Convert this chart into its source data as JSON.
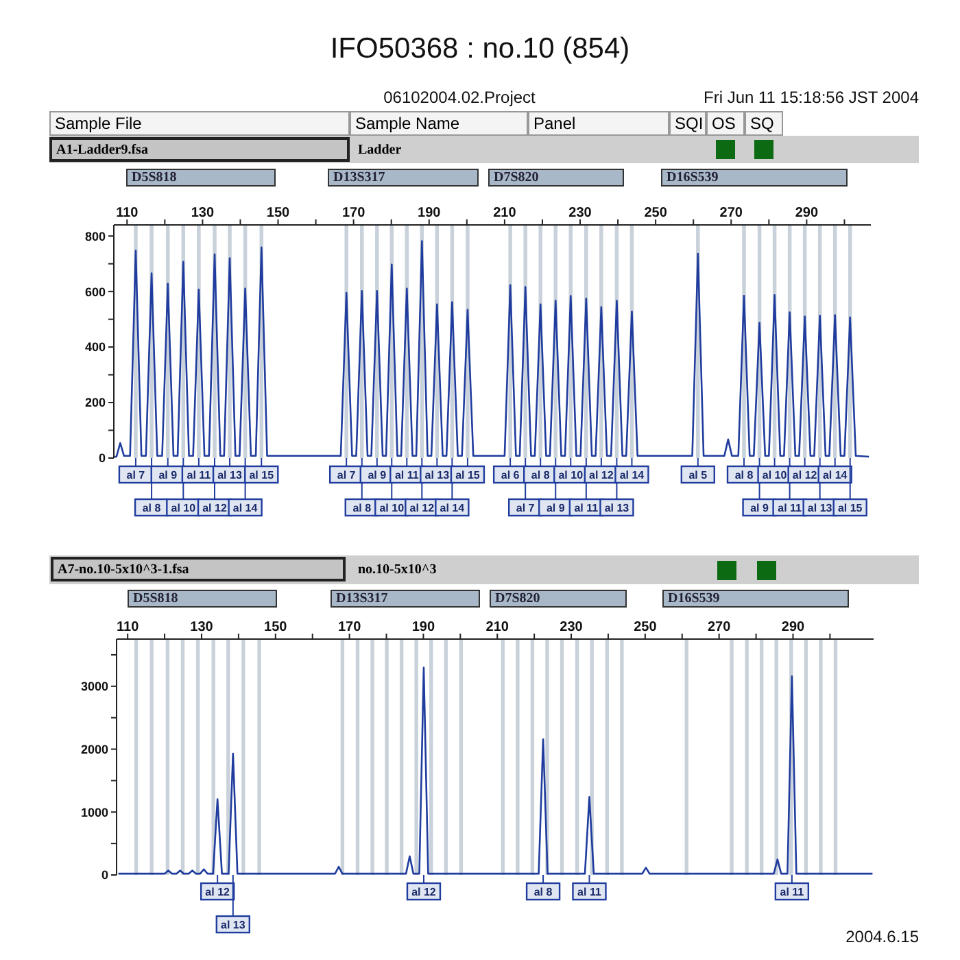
{
  "chart_data": [
    {
      "type": "line",
      "title": "IFO50368 : no.10 (854)",
      "x": [
        106.6,
        107.2,
        108.2,
        109.2,
        110.8,
        112.3,
        113.8,
        115.0,
        116.5,
        118.0,
        119.3,
        120.8,
        122.3,
        123.4,
        124.9,
        126.4,
        127.5,
        129.0,
        130.5,
        131.7,
        133.2,
        134.7,
        135.7,
        137.2,
        138.7,
        139.8,
        141.3,
        142.8,
        144.1,
        145.6,
        147.1,
        166.6,
        168.1,
        169.6,
        170.7,
        172.2,
        173.7,
        174.7,
        176.2,
        177.7,
        178.6,
        180.1,
        181.6,
        182.6,
        184.1,
        185.6,
        186.6,
        188.1,
        189.6,
        190.6,
        192.1,
        193.6,
        194.6,
        196.1,
        197.6,
        198.7,
        200.2,
        201.7,
        210.0,
        211.5,
        213.0,
        214.0,
        215.5,
        217.0,
        218.0,
        219.5,
        221.0,
        222.0,
        223.5,
        225.0,
        226.0,
        227.5,
        229.0,
        230.1,
        231.6,
        233.1,
        234.1,
        235.6,
        237.1,
        238.2,
        239.7,
        241.2,
        242.2,
        243.7,
        245.2,
        259.7,
        261.2,
        262.7,
        268.2,
        269.2,
        270.2,
        271.9,
        273.4,
        274.9,
        276.0,
        277.5,
        279.0,
        280.0,
        281.5,
        283.0,
        284.0,
        285.5,
        287.0,
        288.0,
        289.5,
        291.0,
        292.0,
        293.5,
        295.0,
        296.0,
        297.5,
        299.0,
        300.0,
        301.5,
        303.0,
        306.5
      ],
      "series": [
        {
          "color": "#1f3c9e",
          "values": [
            5,
            5,
            54,
            8,
            8,
            747,
            8,
            8,
            666,
            8,
            8,
            628,
            8,
            8,
            707,
            8,
            8,
            607,
            8,
            8,
            734,
            8,
            8,
            720,
            8,
            8,
            611,
            8,
            8,
            759,
            8,
            8,
            595,
            8,
            8,
            602,
            8,
            8,
            602,
            8,
            8,
            697,
            8,
            8,
            611,
            8,
            8,
            782,
            8,
            8,
            554,
            8,
            8,
            562,
            8,
            8,
            534,
            8,
            8,
            623,
            8,
            8,
            616,
            8,
            8,
            554,
            8,
            8,
            567,
            8,
            8,
            584,
            8,
            8,
            574,
            8,
            8,
            544,
            8,
            8,
            567,
            8,
            8,
            528,
            8,
            8,
            736,
            8,
            8,
            67,
            8,
            8,
            585,
            8,
            8,
            487,
            8,
            8,
            587,
            8,
            8,
            525,
            8,
            8,
            510,
            8,
            8,
            513,
            8,
            8,
            515,
            8,
            8,
            507,
            8,
            5
          ]
        }
      ],
      "xlim": [
        106.5,
        307
      ],
      "xticks": [
        110,
        {
          "value": 120,
          "label": null
        },
        130,
        {
          "value": 140,
          "label": null
        },
        150,
        {
          "value": 160,
          "label": null
        },
        170,
        {
          "value": 180,
          "label": null
        },
        190,
        {
          "value": 200,
          "label": null
        },
        210,
        {
          "value": 220,
          "label": null
        },
        230,
        {
          "value": 240,
          "label": null
        },
        250,
        {
          "value": 260,
          "label": null
        },
        270,
        {
          "value": 280,
          "label": null
        },
        290,
        {
          "value": 300,
          "label": null
        }
      ],
      "ylim": [
        0,
        840
      ],
      "yticks": [
        0,
        {
          "value": 100,
          "label": null
        },
        200,
        {
          "value": 300,
          "label": null
        },
        400,
        {
          "value": 500,
          "label": null
        },
        600,
        {
          "value": 700,
          "label": null
        },
        800
      ],
      "bands": [
        {
          "axis": "x",
          "from": 111.8,
          "to": 112.8,
          "color": "#c9d1da"
        },
        {
          "axis": "x",
          "from": 116.0,
          "to": 117.0,
          "color": "#c9d1da"
        },
        {
          "axis": "x",
          "from": 120.3,
          "to": 121.3,
          "color": "#c9d1da"
        },
        {
          "axis": "x",
          "from": 124.4,
          "to": 125.4,
          "color": "#c9d1da"
        },
        {
          "axis": "x",
          "from": 128.5,
          "to": 129.5,
          "color": "#c9d1da"
        },
        {
          "axis": "x",
          "from": 132.7,
          "to": 133.7,
          "color": "#c9d1da"
        },
        {
          "axis": "x",
          "from": 136.7,
          "to": 137.7,
          "color": "#c9d1da"
        },
        {
          "axis": "x",
          "from": 140.8,
          "to": 141.8,
          "color": "#c9d1da"
        },
        {
          "axis": "x",
          "from": 145.1,
          "to": 146.1,
          "color": "#c9d1da"
        },
        {
          "axis": "x",
          "from": 167.6,
          "to": 168.6,
          "color": "#c9d1da"
        },
        {
          "axis": "x",
          "from": 171.7,
          "to": 172.7,
          "color": "#c9d1da"
        },
        {
          "axis": "x",
          "from": 175.7,
          "to": 176.7,
          "color": "#c9d1da"
        },
        {
          "axis": "x",
          "from": 179.6,
          "to": 180.6,
          "color": "#c9d1da"
        },
        {
          "axis": "x",
          "from": 183.6,
          "to": 184.6,
          "color": "#c9d1da"
        },
        {
          "axis": "x",
          "from": 187.6,
          "to": 188.6,
          "color": "#c9d1da"
        },
        {
          "axis": "x",
          "from": 191.6,
          "to": 192.6,
          "color": "#c9d1da"
        },
        {
          "axis": "x",
          "from": 195.6,
          "to": 196.6,
          "color": "#c9d1da"
        },
        {
          "axis": "x",
          "from": 199.7,
          "to": 200.7,
          "color": "#c9d1da"
        },
        {
          "axis": "x",
          "from": 211.0,
          "to": 212.0,
          "color": "#c9d1da"
        },
        {
          "axis": "x",
          "from": 215.0,
          "to": 216.0,
          "color": "#c9d1da"
        },
        {
          "axis": "x",
          "from": 219.0,
          "to": 220.0,
          "color": "#c9d1da"
        },
        {
          "axis": "x",
          "from": 223.0,
          "to": 224.0,
          "color": "#c9d1da"
        },
        {
          "axis": "x",
          "from": 227.0,
          "to": 228.0,
          "color": "#c9d1da"
        },
        {
          "axis": "x",
          "from": 231.1,
          "to": 232.1,
          "color": "#c9d1da"
        },
        {
          "axis": "x",
          "from": 235.1,
          "to": 236.1,
          "color": "#c9d1da"
        },
        {
          "axis": "x",
          "from": 239.2,
          "to": 240.2,
          "color": "#c9d1da"
        },
        {
          "axis": "x",
          "from": 243.2,
          "to": 244.2,
          "color": "#c9d1da"
        },
        {
          "axis": "x",
          "from": 260.7,
          "to": 261.7,
          "color": "#c9d1da"
        },
        {
          "axis": "x",
          "from": 272.9,
          "to": 273.9,
          "color": "#c9d1da"
        },
        {
          "axis": "x",
          "from": 277.0,
          "to": 278.0,
          "color": "#c9d1da"
        },
        {
          "axis": "x",
          "from": 281.0,
          "to": 282.0,
          "color": "#c9d1da"
        },
        {
          "axis": "x",
          "from": 285.0,
          "to": 286.0,
          "color": "#c9d1da"
        },
        {
          "axis": "x",
          "from": 289.0,
          "to": 290.0,
          "color": "#c9d1da"
        },
        {
          "axis": "x",
          "from": 293.0,
          "to": 294.0,
          "color": "#c9d1da"
        },
        {
          "axis": "x",
          "from": 297.0,
          "to": 298.0,
          "color": "#c9d1da"
        },
        {
          "axis": "x",
          "from": 301.0,
          "to": 302.0,
          "color": "#c9d1da"
        }
      ],
      "annotations": [
        "06102004.02.Project",
        "Fri Jun 11 15:18:56 JST 2004",
        "Sample File",
        "Sample Name",
        "Panel",
        "SQI",
        "OS",
        "SQ",
        "A1-Ladder9.fsa",
        "Ladder",
        "D5S818",
        "D13S317",
        "D7S820",
        "D16S539",
        {
          "text": "al 7",
          "x": 112.3,
          "y": 0
        },
        {
          "text": "al 8",
          "x": 116.5,
          "y": 0
        },
        {
          "text": "al 9",
          "x": 120.8,
          "y": 0
        },
        {
          "text": "al 10",
          "x": 124.9,
          "y": 0
        },
        {
          "text": "al 11",
          "x": 129.0,
          "y": 0
        },
        {
          "text": "al 12",
          "x": 133.2,
          "y": 0
        },
        {
          "text": "al 13",
          "x": 137.2,
          "y": 0
        },
        {
          "text": "al 14",
          "x": 141.3,
          "y": 0
        },
        {
          "text": "al 15",
          "x": 145.6,
          "y": 0
        },
        {
          "text": "al 7",
          "x": 168.1,
          "y": 0
        },
        {
          "text": "al 8",
          "x": 172.2,
          "y": 0
        },
        {
          "text": "al 9",
          "x": 176.2,
          "y": 0
        },
        {
          "text": "al 10",
          "x": 180.1,
          "y": 0
        },
        {
          "text": "al 11",
          "x": 184.1,
          "y": 0
        },
        {
          "text": "al 12",
          "x": 188.1,
          "y": 0
        },
        {
          "text": "al 13",
          "x": 192.1,
          "y": 0
        },
        {
          "text": "al 14",
          "x": 196.1,
          "y": 0
        },
        {
          "text": "al 15",
          "x": 200.2,
          "y": 0
        },
        {
          "text": "al 6",
          "x": 211.5,
          "y": 0
        },
        {
          "text": "al 7",
          "x": 215.5,
          "y": 0
        },
        {
          "text": "al 8",
          "x": 219.5,
          "y": 0
        },
        {
          "text": "al 9",
          "x": 223.5,
          "y": 0
        },
        {
          "text": "al 10",
          "x": 227.5,
          "y": 0
        },
        {
          "text": "al 11",
          "x": 231.6,
          "y": 0
        },
        {
          "text": "al 12",
          "x": 235.6,
          "y": 0
        },
        {
          "text": "al 13",
          "x": 239.7,
          "y": 0
        },
        {
          "text": "al 14",
          "x": 243.7,
          "y": 0
        },
        {
          "text": "al 5",
          "x": 261.2,
          "y": 0
        },
        {
          "text": "al 8",
          "x": 273.4,
          "y": 0
        },
        {
          "text": "al 9",
          "x": 277.5,
          "y": 0
        },
        {
          "text": "al 10",
          "x": 281.5,
          "y": 0
        },
        {
          "text": "al 11",
          "x": 285.5,
          "y": 0
        },
        {
          "text": "al 12",
          "x": 289.5,
          "y": 0
        },
        {
          "text": "al 13",
          "x": 293.5,
          "y": 0
        },
        {
          "text": "al 14",
          "x": 297.5,
          "y": 0
        },
        {
          "text": "al 15",
          "x": 301.5,
          "y": 0
        }
      ]
    },
    {
      "type": "line",
      "x": [
        107.5,
        120.0,
        121.0,
        122.0,
        123.2,
        124.2,
        125.2,
        126.5,
        127.5,
        128.5,
        129.6,
        130.6,
        131.6,
        133.1,
        134.3,
        135.5,
        137.3,
        138.5,
        139.7,
        166.1,
        167.1,
        168.1,
        185.3,
        186.3,
        187.3,
        188.9,
        190.1,
        191.3,
        221.2,
        222.4,
        223.6,
        233.7,
        234.9,
        236.1,
        249.2,
        250.2,
        251.2,
        284.8,
        285.8,
        286.8,
        288.5,
        289.7,
        290.9,
        311.5
      ],
      "series": [
        {
          "color": "#1f3c9e",
          "values": [
            20,
            20,
            70,
            20,
            20,
            70,
            20,
            20,
            70,
            20,
            20,
            90,
            20,
            20,
            1203,
            20,
            20,
            1928,
            20,
            20,
            130,
            20,
            20,
            297,
            20,
            20,
            3297,
            20,
            20,
            2159,
            20,
            20,
            1239,
            20,
            20,
            116,
            20,
            20,
            246,
            20,
            20,
            3159,
            20,
            20
          ]
        }
      ],
      "xlim": [
        107,
        311.8
      ],
      "xticks": [
        110,
        {
          "value": 120,
          "label": null
        },
        130,
        {
          "value": 140,
          "label": null
        },
        150,
        {
          "value": 160,
          "label": null
        },
        170,
        {
          "value": 180,
          "label": null
        },
        190,
        {
          "value": 200,
          "label": null
        },
        210,
        {
          "value": 220,
          "label": null
        },
        230,
        {
          "value": 240,
          "label": null
        },
        250,
        {
          "value": 260,
          "label": null
        },
        270,
        {
          "value": 280,
          "label": null
        },
        290,
        {
          "value": 300,
          "label": null
        }
      ],
      "ylim": [
        0,
        3750
      ],
      "yticks": [
        0,
        {
          "value": 500,
          "label": null
        },
        1000,
        {
          "value": 1500,
          "label": null
        },
        2000,
        {
          "value": 2500,
          "label": null
        },
        3000,
        {
          "value": 3500,
          "label": null
        }
      ],
      "bands": [
        {
          "axis": "x",
          "from": 111.8,
          "to": 112.8,
          "color": "#c9d1da"
        },
        {
          "axis": "x",
          "from": 116.0,
          "to": 117.0,
          "color": "#c9d1da"
        },
        {
          "axis": "x",
          "from": 120.3,
          "to": 121.3,
          "color": "#c9d1da"
        },
        {
          "axis": "x",
          "from": 124.4,
          "to": 125.4,
          "color": "#c9d1da"
        },
        {
          "axis": "x",
          "from": 128.5,
          "to": 129.5,
          "color": "#c9d1da"
        },
        {
          "axis": "x",
          "from": 132.7,
          "to": 133.7,
          "color": "#c9d1da"
        },
        {
          "axis": "x",
          "from": 136.7,
          "to": 137.7,
          "color": "#c9d1da"
        },
        {
          "axis": "x",
          "from": 140.8,
          "to": 141.8,
          "color": "#c9d1da"
        },
        {
          "axis": "x",
          "from": 145.1,
          "to": 146.1,
          "color": "#c9d1da"
        },
        {
          "axis": "x",
          "from": 167.6,
          "to": 168.6,
          "color": "#c9d1da"
        },
        {
          "axis": "x",
          "from": 171.7,
          "to": 172.7,
          "color": "#c9d1da"
        },
        {
          "axis": "x",
          "from": 175.7,
          "to": 176.7,
          "color": "#c9d1da"
        },
        {
          "axis": "x",
          "from": 179.6,
          "to": 180.6,
          "color": "#c9d1da"
        },
        {
          "axis": "x",
          "from": 183.6,
          "to": 184.6,
          "color": "#c9d1da"
        },
        {
          "axis": "x",
          "from": 187.6,
          "to": 188.6,
          "color": "#c9d1da"
        },
        {
          "axis": "x",
          "from": 191.6,
          "to": 192.6,
          "color": "#c9d1da"
        },
        {
          "axis": "x",
          "from": 195.6,
          "to": 196.6,
          "color": "#c9d1da"
        },
        {
          "axis": "x",
          "from": 199.7,
          "to": 200.7,
          "color": "#c9d1da"
        },
        {
          "axis": "x",
          "from": 211.0,
          "to": 212.0,
          "color": "#c9d1da"
        },
        {
          "axis": "x",
          "from": 215.0,
          "to": 216.0,
          "color": "#c9d1da"
        },
        {
          "axis": "x",
          "from": 219.0,
          "to": 220.0,
          "color": "#c9d1da"
        },
        {
          "axis": "x",
          "from": 223.0,
          "to": 224.0,
          "color": "#c9d1da"
        },
        {
          "axis": "x",
          "from": 227.0,
          "to": 228.0,
          "color": "#c9d1da"
        },
        {
          "axis": "x",
          "from": 231.1,
          "to": 232.1,
          "color": "#c9d1da"
        },
        {
          "axis": "x",
          "from": 235.1,
          "to": 236.1,
          "color": "#c9d1da"
        },
        {
          "axis": "x",
          "from": 239.2,
          "to": 240.2,
          "color": "#c9d1da"
        },
        {
          "axis": "x",
          "from": 243.2,
          "to": 244.2,
          "color": "#c9d1da"
        },
        {
          "axis": "x",
          "from": 260.7,
          "to": 261.7,
          "color": "#c9d1da"
        },
        {
          "axis": "x",
          "from": 272.9,
          "to": 273.9,
          "color": "#c9d1da"
        },
        {
          "axis": "x",
          "from": 277.0,
          "to": 278.0,
          "color": "#c9d1da"
        },
        {
          "axis": "x",
          "from": 281.0,
          "to": 282.0,
          "color": "#c9d1da"
        },
        {
          "axis": "x",
          "from": 285.0,
          "to": 286.0,
          "color": "#c9d1da"
        },
        {
          "axis": "x",
          "from": 289.0,
          "to": 290.0,
          "color": "#c9d1da"
        },
        {
          "axis": "x",
          "from": 293.0,
          "to": 294.0,
          "color": "#c9d1da"
        },
        {
          "axis": "x",
          "from": 297.0,
          "to": 298.0,
          "color": "#c9d1da"
        },
        {
          "axis": "x",
          "from": 301.0,
          "to": 302.0,
          "color": "#c9d1da"
        }
      ],
      "annotations": [
        "A7-no.10-5x10^3-1.fsa",
        "no.10-5x10^3",
        "D5S818",
        "D13S317",
        "D7S820",
        "D16S539",
        "2004.6.15",
        {
          "text": "al 12",
          "x": 134.3,
          "y": 0
        },
        {
          "text": "al 13",
          "x": 138.5,
          "y": 0
        },
        {
          "text": "al 12",
          "x": 190.1,
          "y": 0
        },
        {
          "text": "al 8",
          "x": 222.4,
          "y": 0
        },
        {
          "text": "al 11",
          "x": 234.9,
          "y": 0
        },
        {
          "text": "al 11",
          "x": 289.7,
          "y": 0
        }
      ]
    }
  ]
}
